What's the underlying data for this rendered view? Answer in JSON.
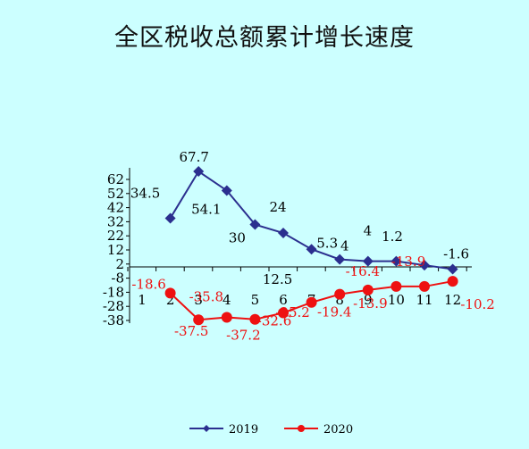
{
  "chart_data": {
    "type": "line",
    "title": "全区税收总额累计增长速度",
    "xlabel": "",
    "ylabel": "",
    "categories": [
      "1",
      "2",
      "3",
      "4",
      "5",
      "6",
      "7",
      "8",
      "9",
      "10",
      "11",
      "12"
    ],
    "y_ticks": [
      "62",
      "52",
      "42",
      "32",
      "22",
      "12",
      "2",
      "-8",
      "-18",
      "-28",
      "-38"
    ],
    "ylim": [
      -38,
      62
    ],
    "grid": false,
    "legend_position": "bottom",
    "series": [
      {
        "name": "2019",
        "color": "#2b2f8f",
        "marker": "diamond",
        "values": [
          null,
          34.5,
          67.7,
          54.1,
          30,
          24,
          12.5,
          5.3,
          4,
          4,
          1.2,
          -1.6
        ],
        "labels": [
          "",
          "34.5",
          "67.7",
          "54.1",
          "30",
          "24",
          "12.5",
          "5.3",
          "4",
          "4",
          "1.2",
          "-1.6"
        ]
      },
      {
        "name": "2020",
        "color": "#ee1111",
        "marker": "circle",
        "values": [
          null,
          -18.6,
          -37.5,
          -35.8,
          -37.2,
          -32.6,
          -25.2,
          -19.4,
          -16.4,
          -13.9,
          -13.9,
          -10.2
        ],
        "labels": [
          "",
          "-18.6",
          "-37.5",
          "-35.8",
          "-37.2",
          "-32.6",
          "-25.2",
          "-19.4",
          "-16.4",
          "-13.9",
          "-13.9",
          "-10.2"
        ]
      }
    ]
  }
}
